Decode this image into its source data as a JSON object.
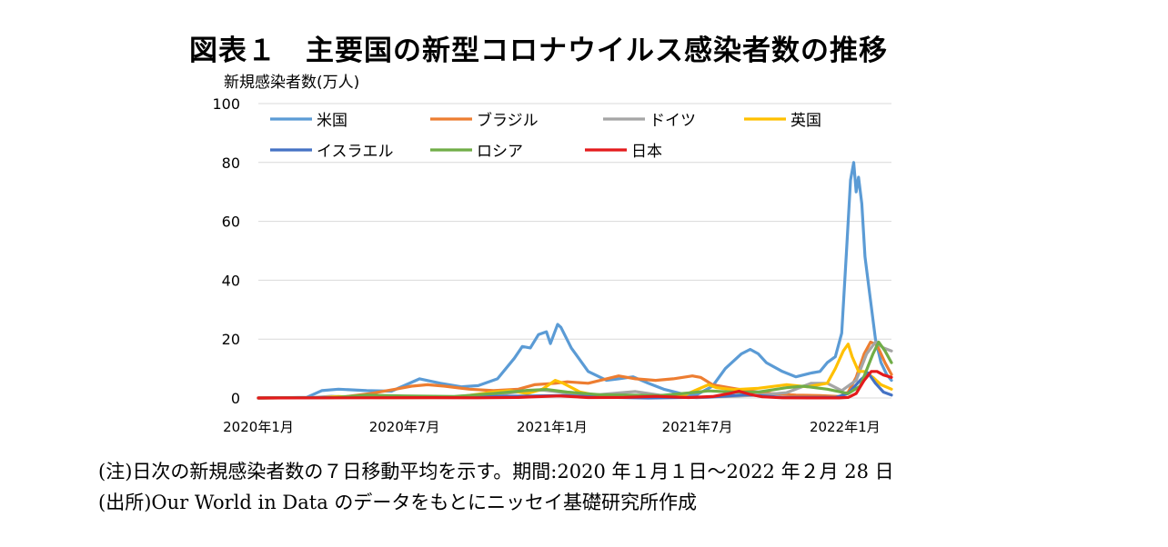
{
  "title": "図表１　主要国の新型コロナウイルス感染者数の推移",
  "notes": {
    "note": "(注)日次の新規感染者数の７日移動平均を示す。期間:2020 年１月１日～2022 年２月 28 日",
    "source": "(出所)Our World in Data のデータをもとにニッセイ基礎研究所作成"
  },
  "chart_data": {
    "type": "line",
    "title": "",
    "ylabel": "新規感染者数(万人)",
    "xlabel": "",
    "ylim": [
      0,
      100
    ],
    "yticks": [
      0,
      20,
      40,
      60,
      80,
      100
    ],
    "xlim": [
      "2020-01-01",
      "2022-02-28"
    ],
    "xticks": [
      {
        "date": "2020-01-01",
        "label": "2020年1月"
      },
      {
        "date": "2020-07-01",
        "label": "2020年7月"
      },
      {
        "date": "2021-01-01",
        "label": "2021年1月"
      },
      {
        "date": "2021-07-01",
        "label": "2021年7月"
      },
      {
        "date": "2022-01-01",
        "label": "2022年1月"
      }
    ],
    "grid": "horizontal",
    "legend": "top",
    "series": [
      {
        "name": "米国",
        "color": "#5b9bd5",
        "points": [
          [
            "2020-01-01",
            0
          ],
          [
            "2020-03-01",
            0.2
          ],
          [
            "2020-03-20",
            2.5
          ],
          [
            "2020-04-10",
            3
          ],
          [
            "2020-05-15",
            2.5
          ],
          [
            "2020-06-15",
            2.3
          ],
          [
            "2020-07-20",
            6.5
          ],
          [
            "2020-08-15",
            5
          ],
          [
            "2020-09-10",
            3.8
          ],
          [
            "2020-10-01",
            4.2
          ],
          [
            "2020-10-25",
            6.5
          ],
          [
            "2020-11-15",
            13.5
          ],
          [
            "2020-11-25",
            17.5
          ],
          [
            "2020-12-05",
            17
          ],
          [
            "2020-12-15",
            21.5
          ],
          [
            "2020-12-25",
            22.5
          ],
          [
            "2020-12-30",
            18.5
          ],
          [
            "2021-01-08",
            25
          ],
          [
            "2021-01-12",
            24
          ],
          [
            "2021-01-25",
            17
          ],
          [
            "2021-02-15",
            9
          ],
          [
            "2021-03-10",
            6
          ],
          [
            "2021-03-25",
            6.5
          ],
          [
            "2021-04-12",
            7.2
          ],
          [
            "2021-05-01",
            5
          ],
          [
            "2021-05-20",
            3
          ],
          [
            "2021-06-15",
            1.2
          ],
          [
            "2021-07-01",
            1.2
          ],
          [
            "2021-07-20",
            4
          ],
          [
            "2021-08-05",
            10
          ],
          [
            "2021-08-25",
            15
          ],
          [
            "2021-09-05",
            16.5
          ],
          [
            "2021-09-15",
            15
          ],
          [
            "2021-09-25",
            12
          ],
          [
            "2021-10-15",
            9
          ],
          [
            "2021-11-01",
            7.2
          ],
          [
            "2021-11-20",
            8.5
          ],
          [
            "2021-12-01",
            9
          ],
          [
            "2021-12-10",
            12
          ],
          [
            "2021-12-20",
            14
          ],
          [
            "2021-12-28",
            22
          ],
          [
            "2022-01-03",
            50
          ],
          [
            "2022-01-08",
            74
          ],
          [
            "2022-01-12",
            80
          ],
          [
            "2022-01-15",
            70
          ],
          [
            "2022-01-18",
            75
          ],
          [
            "2022-01-22",
            66
          ],
          [
            "2022-01-26",
            48
          ],
          [
            "2022-02-01",
            35
          ],
          [
            "2022-02-08",
            20
          ],
          [
            "2022-02-15",
            12
          ],
          [
            "2022-02-22",
            8
          ],
          [
            "2022-02-28",
            6
          ]
        ]
      },
      {
        "name": "ブラジル",
        "color": "#ed7d31",
        "points": [
          [
            "2020-01-01",
            0
          ],
          [
            "2020-03-20",
            0.1
          ],
          [
            "2020-04-20",
            0.5
          ],
          [
            "2020-05-20",
            1.5
          ],
          [
            "2020-06-20",
            3
          ],
          [
            "2020-07-10",
            4
          ],
          [
            "2020-07-30",
            4.5
          ],
          [
            "2020-08-20",
            4
          ],
          [
            "2020-09-20",
            3
          ],
          [
            "2020-10-20",
            2.5
          ],
          [
            "2020-11-20",
            3
          ],
          [
            "2020-12-10",
            4.5
          ],
          [
            "2021-01-05",
            5
          ],
          [
            "2021-01-20",
            5.5
          ],
          [
            "2021-02-15",
            5
          ],
          [
            "2021-03-10",
            6.5
          ],
          [
            "2021-03-25",
            7.5
          ],
          [
            "2021-04-15",
            6.5
          ],
          [
            "2021-05-10",
            6
          ],
          [
            "2021-06-01",
            6.5
          ],
          [
            "2021-06-25",
            7.5
          ],
          [
            "2021-07-05",
            7
          ],
          [
            "2021-07-20",
            4.5
          ],
          [
            "2021-08-10",
            3.5
          ],
          [
            "2021-09-01",
            2.5
          ],
          [
            "2021-10-01",
            1.5
          ],
          [
            "2021-11-01",
            1
          ],
          [
            "2021-12-01",
            0.8
          ],
          [
            "2021-12-25",
            0.5
          ],
          [
            "2022-01-05",
            2
          ],
          [
            "2022-01-15",
            7
          ],
          [
            "2022-01-25",
            15
          ],
          [
            "2022-02-02",
            19
          ],
          [
            "2022-02-10",
            18
          ],
          [
            "2022-02-20",
            12
          ],
          [
            "2022-02-28",
            8
          ]
        ]
      },
      {
        "name": "ドイツ",
        "color": "#a5a5a5",
        "points": [
          [
            "2020-01-01",
            0
          ],
          [
            "2020-03-10",
            0.2
          ],
          [
            "2020-04-01",
            0.6
          ],
          [
            "2020-05-01",
            0.2
          ],
          [
            "2020-07-01",
            0.05
          ],
          [
            "2020-09-01",
            0.15
          ],
          [
            "2020-10-15",
            0.8
          ],
          [
            "2020-11-15",
            1.9
          ],
          [
            "2020-12-20",
            2.7
          ],
          [
            "2021-01-05",
            2.2
          ],
          [
            "2021-02-15",
            0.8
          ],
          [
            "2021-04-15",
            2.2
          ],
          [
            "2021-05-15",
            1
          ],
          [
            "2021-06-30",
            0.1
          ],
          [
            "2021-08-15",
            0.6
          ],
          [
            "2021-09-15",
            1
          ],
          [
            "2021-10-20",
            1.8
          ],
          [
            "2021-11-20",
            5
          ],
          [
            "2021-12-10",
            5
          ],
          [
            "2021-12-28",
            2.5
          ],
          [
            "2022-01-15",
            6
          ],
          [
            "2022-01-28",
            15
          ],
          [
            "2022-02-08",
            19
          ],
          [
            "2022-02-18",
            17
          ],
          [
            "2022-02-28",
            16
          ]
        ]
      },
      {
        "name": "英国",
        "color": "#ffc000",
        "points": [
          [
            "2020-01-01",
            0
          ],
          [
            "2020-03-20",
            0.1
          ],
          [
            "2020-04-10",
            0.5
          ],
          [
            "2020-06-01",
            0.1
          ],
          [
            "2020-09-01",
            0.2
          ],
          [
            "2020-10-20",
            2
          ],
          [
            "2020-11-10",
            2.5
          ],
          [
            "2020-12-01",
            1.5
          ],
          [
            "2020-12-20",
            3
          ],
          [
            "2021-01-05",
            6
          ],
          [
            "2021-01-15",
            5
          ],
          [
            "2021-02-05",
            2
          ],
          [
            "2021-03-01",
            0.7
          ],
          [
            "2021-05-15",
            0.2
          ],
          [
            "2021-06-15",
            1
          ],
          [
            "2021-07-15",
            4.5
          ],
          [
            "2021-07-25",
            3.5
          ],
          [
            "2021-08-15",
            2.8
          ],
          [
            "2021-09-15",
            3.3
          ],
          [
            "2021-10-20",
            4.5
          ],
          [
            "2021-11-15",
            3.8
          ],
          [
            "2021-12-10",
            5
          ],
          [
            "2021-12-20",
            10
          ],
          [
            "2021-12-30",
            16
          ],
          [
            "2022-01-05",
            18.3
          ],
          [
            "2022-01-10",
            14
          ],
          [
            "2022-01-18",
            9
          ],
          [
            "2022-01-25",
            9
          ],
          [
            "2022-02-05",
            7
          ],
          [
            "2022-02-15",
            4.5
          ],
          [
            "2022-02-28",
            3
          ]
        ]
      },
      {
        "name": "イスラエル",
        "color": "#4472c4",
        "points": [
          [
            "2020-01-01",
            0
          ],
          [
            "2020-09-15",
            0.4
          ],
          [
            "2021-01-15",
            0.8
          ],
          [
            "2021-03-01",
            0.3
          ],
          [
            "2021-05-01",
            0
          ],
          [
            "2021-07-15",
            0.3
          ],
          [
            "2021-09-01",
            1.1
          ],
          [
            "2021-10-15",
            0.2
          ],
          [
            "2021-12-20",
            0.2
          ],
          [
            "2022-01-05",
            1.5
          ],
          [
            "2022-01-20",
            6
          ],
          [
            "2022-01-30",
            8.5
          ],
          [
            "2022-02-08",
            5
          ],
          [
            "2022-02-18",
            2
          ],
          [
            "2022-02-28",
            1
          ]
        ]
      },
      {
        "name": "ロシア",
        "color": "#70ad47",
        "points": [
          [
            "2020-01-01",
            0
          ],
          [
            "2020-04-01",
            0.1
          ],
          [
            "2020-05-15",
            1
          ],
          [
            "2020-06-30",
            0.7
          ],
          [
            "2020-09-01",
            0.5
          ],
          [
            "2020-10-20",
            1.5
          ],
          [
            "2020-12-01",
            2.6
          ],
          [
            "2020-12-25",
            2.9
          ],
          [
            "2021-01-20",
            2
          ],
          [
            "2021-03-01",
            1.1
          ],
          [
            "2021-05-15",
            0.8
          ],
          [
            "2021-06-20",
            1.7
          ],
          [
            "2021-07-15",
            2.4
          ],
          [
            "2021-08-15",
            2
          ],
          [
            "2021-09-15",
            2
          ],
          [
            "2021-10-20",
            3.5
          ],
          [
            "2021-11-10",
            4
          ],
          [
            "2021-12-10",
            3
          ],
          [
            "2022-01-05",
            1.5
          ],
          [
            "2022-01-20",
            4
          ],
          [
            "2022-02-05",
            15
          ],
          [
            "2022-02-12",
            19
          ],
          [
            "2022-02-20",
            16
          ],
          [
            "2022-02-28",
            12
          ]
        ]
      },
      {
        "name": "日本",
        "color": "#e41a1c",
        "points": [
          [
            "2020-01-01",
            0
          ],
          [
            "2020-04-15",
            0.05
          ],
          [
            "2020-08-05",
            0.13
          ],
          [
            "2020-10-01",
            0.05
          ],
          [
            "2020-11-20",
            0.2
          ],
          [
            "2021-01-10",
            0.7
          ],
          [
            "2021-02-15",
            0.15
          ],
          [
            "2021-04-01",
            0.2
          ],
          [
            "2021-05-10",
            0.55
          ],
          [
            "2021-06-20",
            0.15
          ],
          [
            "2021-07-20",
            0.5
          ],
          [
            "2021-08-10",
            1.5
          ],
          [
            "2021-08-22",
            2.3
          ],
          [
            "2021-09-05",
            1.2
          ],
          [
            "2021-09-20",
            0.4
          ],
          [
            "2021-10-15",
            0.05
          ],
          [
            "2021-12-25",
            0.03
          ],
          [
            "2022-01-05",
            0.2
          ],
          [
            "2022-01-15",
            1.5
          ],
          [
            "2022-01-25",
            6
          ],
          [
            "2022-02-03",
            9
          ],
          [
            "2022-02-10",
            9
          ],
          [
            "2022-02-18",
            7.8
          ],
          [
            "2022-02-28",
            7
          ]
        ]
      }
    ]
  }
}
